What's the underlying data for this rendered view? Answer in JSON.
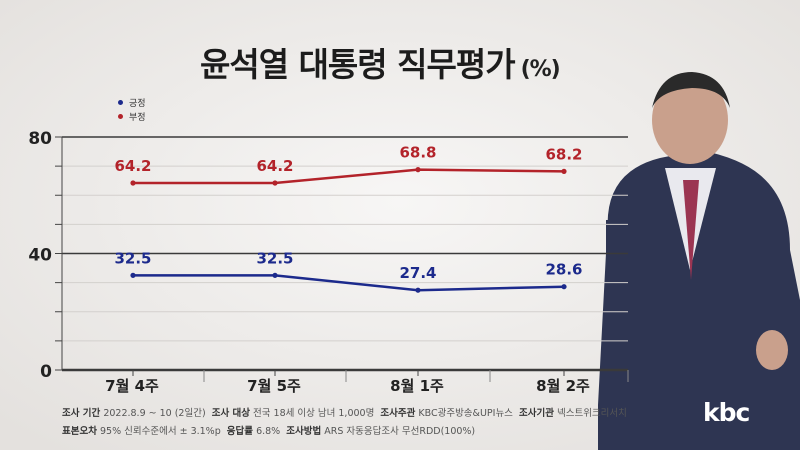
{
  "title": "윤석열 대통령 직무평가",
  "title_unit": "(%)",
  "legend": [
    {
      "label": "긍정",
      "color": "#1c2a8c"
    },
    {
      "label": "부정",
      "color": "#b3232a"
    }
  ],
  "chart_data": {
    "type": "line",
    "categories": [
      "7월 4주",
      "7월 5주",
      "8월 1주",
      "8월 2주"
    ],
    "series": [
      {
        "name": "부정",
        "values": [
          64.2,
          64.2,
          68.8,
          68.2
        ],
        "color": "#b3232a"
      },
      {
        "name": "긍정",
        "values": [
          32.5,
          32.5,
          27.4,
          28.6
        ],
        "color": "#1c2a8c"
      }
    ],
    "yticks": [
      0,
      40,
      80
    ],
    "ylim": [
      0,
      80
    ],
    "grid": true
  },
  "footnotes": {
    "line1": [
      {
        "label": "조사 기간",
        "value": "2022.8.9 ~ 10 (2일간)"
      },
      {
        "label": "조사 대상",
        "value": "전국 18세 이상 남녀 1,000명"
      },
      {
        "label": "조사주관",
        "value": "KBC광주방송&UPI뉴스"
      },
      {
        "label": "조사기관",
        "value": "넥스트위크리서치"
      }
    ],
    "line2": [
      {
        "label": "표본오차",
        "value": "95% 신뢰수준에서 ± 3.1%p"
      },
      {
        "label": "응답률",
        "value": "6.8%"
      },
      {
        "label": "조사방법",
        "value": "ARS 자동응답조사 무선RDD(100%)"
      }
    ]
  },
  "logo": "kbc"
}
